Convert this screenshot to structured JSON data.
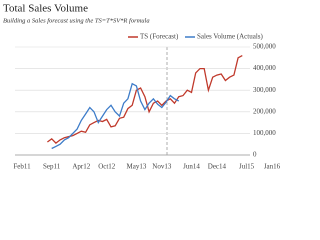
{
  "chart_data": {
    "type": "line",
    "title": "Total Sales Volume",
    "subtitle": "Building a Sales forecast using the TS=T*SV*R formula",
    "categories": [
      "Feb11",
      null,
      null,
      null,
      null,
      null,
      null,
      "Sep11",
      null,
      null,
      null,
      null,
      null,
      null,
      "Apr12",
      null,
      null,
      null,
      null,
      null,
      "Oct12",
      null,
      null,
      null,
      null,
      null,
      null,
      "May13",
      null,
      null,
      null,
      null,
      null,
      "Nov13",
      null,
      null,
      null,
      null,
      null,
      null,
      "Jun14",
      null,
      null,
      null,
      null,
      null,
      "Dec14",
      null,
      null,
      null,
      null,
      null,
      null,
      "Jul15",
      null,
      null,
      null,
      null,
      null,
      "Jan16"
    ],
    "series": [
      {
        "name": "TS (Forecast)",
        "color": "#c0392b",
        "values": [
          null,
          null,
          null,
          null,
          null,
          null,
          60000,
          75000,
          55000,
          70000,
          80000,
          85000,
          90000,
          100000,
          110000,
          105000,
          140000,
          150000,
          160000,
          155000,
          165000,
          130000,
          135000,
          170000,
          175000,
          215000,
          230000,
          300000,
          310000,
          270000,
          200000,
          240000,
          250000,
          230000,
          250000,
          260000,
          240000,
          270000,
          275000,
          300000,
          290000,
          380000,
          400000,
          400000,
          300000,
          360000,
          370000,
          375000,
          345000,
          360000,
          370000,
          450000,
          460000,
          null,
          null,
          null,
          null,
          null,
          null,
          null
        ]
      },
      {
        "name": "Sales Volume (Actuals)",
        "color": "#3d7cc9",
        "values": [
          null,
          null,
          null,
          null,
          null,
          null,
          null,
          30000,
          40000,
          50000,
          70000,
          80000,
          100000,
          120000,
          160000,
          190000,
          220000,
          200000,
          150000,
          180000,
          210000,
          230000,
          200000,
          180000,
          240000,
          260000,
          330000,
          320000,
          250000,
          210000,
          240000,
          260000,
          235000,
          220000,
          245000,
          275000,
          260000,
          250000,
          null,
          null,
          null,
          null,
          null,
          null,
          null,
          null,
          null,
          null,
          null,
          null,
          null,
          null,
          null,
          null,
          null,
          null,
          null,
          null,
          null,
          null
        ]
      }
    ],
    "ylim": [
      0,
      500000
    ],
    "yticks": [
      0,
      {
        "value": 100000,
        "label": "100,000"
      },
      {
        "value": 200000,
        "label": "200,000"
      },
      {
        "value": 300000,
        "label": "300,000"
      },
      {
        "value": 400000,
        "label": "400,000"
      },
      {
        "value": 500000,
        "label": "500,000"
      }
    ],
    "grid": true
  }
}
